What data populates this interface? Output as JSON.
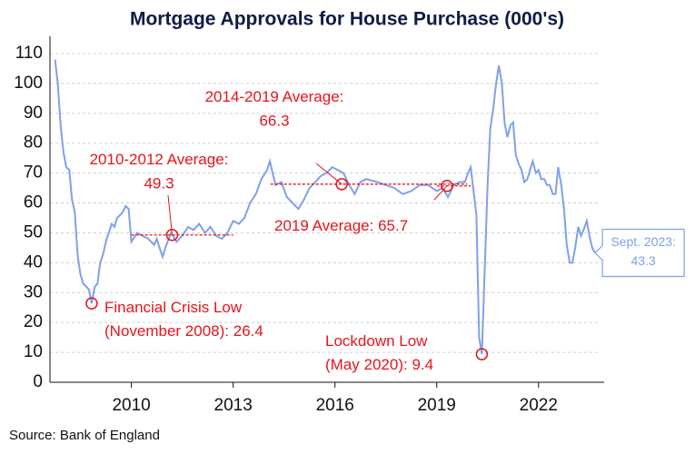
{
  "chart_data": {
    "type": "line",
    "title": "Mortgage Approvals for House Purchase (000's)",
    "source": "Source: Bank of England",
    "xlim": [
      2007.6,
      2023.8
    ],
    "xticks": [
      2010,
      2013,
      2016,
      2019,
      2022
    ],
    "ylim": [
      0,
      110
    ],
    "yticks": [
      0,
      10,
      20,
      30,
      40,
      50,
      60,
      70,
      80,
      90,
      100,
      110
    ],
    "grid": true,
    "series": [
      {
        "color": "#7ea1e9",
        "x": [
          2007.75,
          2007.83,
          2007.92,
          2008.0,
          2008.08,
          2008.17,
          2008.25,
          2008.33,
          2008.42,
          2008.5,
          2008.58,
          2008.67,
          2008.75,
          2008.83,
          2008.92,
          2009.0,
          2009.08,
          2009.17,
          2009.25,
          2009.33,
          2009.42,
          2009.5,
          2009.58,
          2009.67,
          2009.75,
          2009.83,
          2009.92,
          2010.0,
          2010.17,
          2010.33,
          2010.5,
          2010.67,
          2010.75,
          2010.83,
          2010.92,
          2011.0,
          2011.17,
          2011.33,
          2011.5,
          2011.67,
          2011.83,
          2012.0,
          2012.17,
          2012.33,
          2012.5,
          2012.67,
          2012.83,
          2013.0,
          2013.17,
          2013.33,
          2013.5,
          2013.67,
          2013.83,
          2014.0,
          2014.08,
          2014.25,
          2014.42,
          2014.58,
          2014.75,
          2014.92,
          2015.08,
          2015.25,
          2015.42,
          2015.58,
          2015.75,
          2015.92,
          2016.08,
          2016.25,
          2016.42,
          2016.58,
          2016.75,
          2016.92,
          2017.25,
          2017.5,
          2017.75,
          2018.0,
          2018.25,
          2018.5,
          2018.75,
          2019.0,
          2019.17,
          2019.33,
          2019.5,
          2019.67,
          2019.83,
          2019.92,
          2020.0,
          2020.17,
          2020.25,
          2020.33,
          2020.42,
          2020.5,
          2020.58,
          2020.67,
          2020.75,
          2020.83,
          2020.92,
          2021.0,
          2021.08,
          2021.17,
          2021.25,
          2021.33,
          2021.42,
          2021.5,
          2021.58,
          2021.67,
          2021.75,
          2021.83,
          2021.92,
          2022.0,
          2022.08,
          2022.17,
          2022.25,
          2022.33,
          2022.42,
          2022.5,
          2022.58,
          2022.67,
          2022.75,
          2022.83,
          2022.92,
          2023.0,
          2023.08,
          2023.17,
          2023.25,
          2023.33,
          2023.42,
          2023.5,
          2023.58,
          2023.67
        ],
        "values": [
          108,
          100,
          85,
          77,
          72,
          71,
          61,
          57,
          42,
          36,
          33,
          32,
          31,
          26.4,
          32,
          33,
          40,
          43,
          47,
          50,
          53,
          52,
          55,
          56,
          57,
          59,
          58,
          47,
          50,
          49,
          48,
          46,
          48,
          45,
          42,
          45,
          50,
          47,
          49,
          52,
          51,
          53,
          50,
          52,
          49,
          48,
          50,
          54,
          53,
          55,
          60,
          63,
          68,
          71,
          74,
          66,
          67,
          62,
          60,
          58,
          61,
          65,
          67,
          69,
          70,
          72,
          71,
          70,
          66,
          63,
          67,
          68,
          67,
          66,
          65,
          63,
          64,
          66,
          66,
          64,
          65,
          62,
          66,
          67,
          67,
          70,
          72,
          56,
          15,
          9.4,
          40,
          67,
          85,
          92,
          100,
          106,
          100,
          87,
          82,
          86,
          87,
          76,
          73,
          71,
          67,
          68,
          71,
          74,
          70,
          71,
          68,
          68,
          66,
          66,
          63,
          63,
          72,
          66,
          58,
          46,
          40,
          40,
          45,
          52,
          49,
          51,
          54,
          49,
          45,
          43.3
        ]
      }
    ],
    "annotations": [
      {
        "text": "Financial Crisis Low",
        "text2": "(November 2008): ",
        "value": 26.4,
        "x": 2008.83
      },
      {
        "text": "Lockdown Low",
        "text2": "(May 2020): ",
        "value": 9.4,
        "x": 2020.33
      },
      {
        "text": "2010-2012 Average:",
        "value": 49.3,
        "x": 2011.2,
        "span": [
          2010,
          2013
        ]
      },
      {
        "text": "2014-2019 Average:",
        "value": 66.3,
        "x": 2016.2,
        "span": [
          2014.1,
          2019.9
        ]
      },
      {
        "text": "2019 Average: ",
        "value": 65.7,
        "x": 2019.3,
        "span": [
          2019,
          2020
        ]
      }
    ],
    "end_label": "Sept. 2023:"
  }
}
